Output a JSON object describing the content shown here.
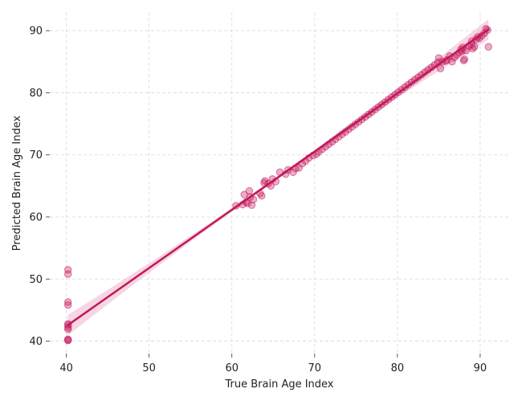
{
  "chart_data": {
    "type": "scatter",
    "title": "",
    "xlabel": "True Brain Age Index",
    "ylabel": "Predicted Brain Age Index",
    "xlim": [
      38,
      93.5
    ],
    "ylim": [
      38,
      93
    ],
    "xticks": [
      40,
      50,
      60,
      70,
      80,
      90
    ],
    "yticks": [
      40,
      50,
      60,
      70,
      80,
      90
    ],
    "grid": true,
    "legend": "none",
    "colors": {
      "points": "#c2185b",
      "line": "#c2185b",
      "band": "#e8a4bf",
      "grid": "#d9d9d9"
    },
    "series": [
      {
        "type": "points",
        "x": [
          40.2,
          40.2,
          40.2,
          40.2,
          40.2,
          40.2,
          40.2,
          40.2,
          40.2,
          40.2,
          40.2,
          60.5,
          61.3,
          61.5,
          61.7,
          61.9,
          62.1,
          62.2,
          62.4,
          62.6,
          63.4,
          63.6,
          63.9,
          64.0,
          64.4,
          64.7,
          64.9,
          65.3,
          65.8,
          66.5,
          66.8,
          67.4,
          67.7,
          68.1,
          68.5,
          68.9,
          69.3,
          69.8,
          70.2,
          70.5,
          70.9,
          71.3,
          71.7,
          72.1,
          72.5,
          72.9,
          73.3,
          73.7,
          74.1,
          74.5,
          74.9,
          75.3,
          75.7,
          76.1,
          76.5,
          76.9,
          77.3,
          77.7,
          78.1,
          78.5,
          78.9,
          79.3,
          79.7,
          80.1,
          80.5,
          80.9,
          81.3,
          81.7,
          82.1,
          82.5,
          82.9,
          83.3,
          83.7,
          84.1,
          84.5,
          84.9,
          85.0,
          85.2,
          85.4,
          85.8,
          86.0,
          86.3,
          86.6,
          86.9,
          87.2,
          87.5,
          87.7,
          87.8,
          87.9,
          88.0,
          88.1,
          88.3,
          88.6,
          88.9,
          89.0,
          89.1,
          89.3,
          89.5,
          89.7,
          89.9,
          90.2,
          90.5,
          90.7,
          90.9,
          91.0
        ],
        "y": [
          51.5,
          50.8,
          46.3,
          45.8,
          42.6,
          42.2,
          41.9,
          40.2,
          40.1,
          40.3,
          42.8,
          61.8,
          62.0,
          63.6,
          62.4,
          62.2,
          64.2,
          63.2,
          61.9,
          62.8,
          63.8,
          63.4,
          65.5,
          65.8,
          65.4,
          65.0,
          66.1,
          65.7,
          67.2,
          66.9,
          67.6,
          67.2,
          67.8,
          67.9,
          68.6,
          69.0,
          69.5,
          69.9,
          70.1,
          70.5,
          70.9,
          71.3,
          71.7,
          72.1,
          72.5,
          72.9,
          73.3,
          73.7,
          74.1,
          74.5,
          74.9,
          75.3,
          75.7,
          76.1,
          76.5,
          76.9,
          77.3,
          77.7,
          78.1,
          78.5,
          78.9,
          79.3,
          79.7,
          80.1,
          80.5,
          80.9,
          81.3,
          81.7,
          82.1,
          82.5,
          82.9,
          83.3,
          83.7,
          84.1,
          84.5,
          84.9,
          85.6,
          83.9,
          85.0,
          85.1,
          85.3,
          85.9,
          85.0,
          85.7,
          86.1,
          86.5,
          87.0,
          86.7,
          87.3,
          85.2,
          85.4,
          86.8,
          87.5,
          87.8,
          88.3,
          87.1,
          87.4,
          88.6,
          89.0,
          88.8,
          89.2,
          89.6,
          90.3,
          90.1,
          87.4
        ]
      },
      {
        "type": "regression-line",
        "x": [
          40.2,
          91.0
        ],
        "y": [
          42.6,
          90.2
        ]
      }
    ]
  }
}
